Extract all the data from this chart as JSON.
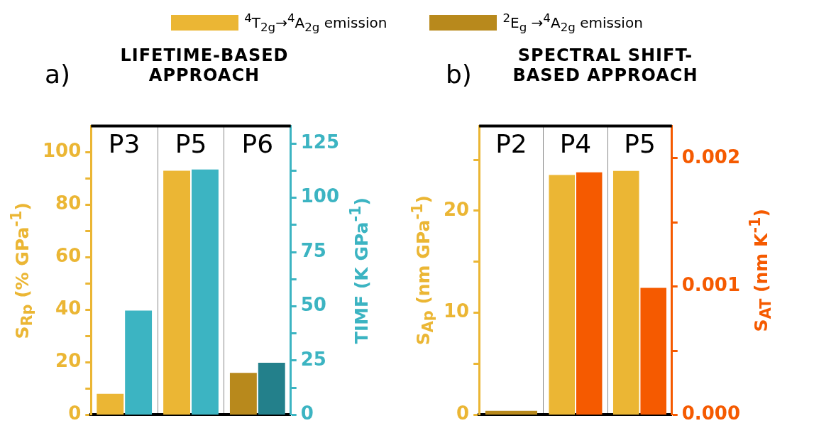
{
  "chart_data": [
    {
      "type": "bar",
      "title": "LIFETIME-BASED APPROACH",
      "annotations": [
        "a)"
      ],
      "ylabel": "S$_{Rp}$ (% GPa$^{-1}$)",
      "y2label": "TIMF (K GPa$^{-1}$)",
      "categories": [
        "P3",
        "P5",
        "P6"
      ],
      "series": [
        {
          "name": "$^{4}$T$_{2g}$→$^{4}$A$_{2g}$ emission",
          "color": "#ebb634",
          "values": [
            8,
            93,
            null
          ]
        },
        {
          "name": "$^{2}$E$_{g}$ →$^{4}$A$_{2g}$ emission",
          "color": "#b8891c",
          "values": [
            null,
            null,
            16
          ]
        },
        {
          "color": "#3cb4c2",
          "axis": "y2",
          "values": [
            48,
            113,
            null
          ]
        },
        {
          "color": "#23808b",
          "axis": "y2",
          "values": [
            null,
            null,
            24
          ]
        }
      ],
      "ylim": [
        0,
        110
      ],
      "yticks": [
        0,
        {
          "value": 10,
          "label": null
        },
        20,
        {
          "value": 30,
          "label": null
        },
        40,
        {
          "value": 50,
          "label": null
        },
        60,
        {
          "value": 70,
          "label": null
        },
        80,
        {
          "value": 90,
          "label": null
        },
        100
      ],
      "y2lim": [
        0,
        133
      ],
      "y2ticks": [
        0,
        {
          "value": 12.5,
          "label": null
        },
        25,
        {
          "value": 37.5,
          "label": null
        },
        50,
        {
          "value": 62.5,
          "label": null
        },
        75,
        {
          "value": 87.5,
          "label": null
        },
        100,
        {
          "value": 112.5,
          "label": null
        },
        125
      ],
      "grid": "x",
      "legend": "top"
    },
    {
      "type": "bar",
      "title": "SPECTRAL SHIFT-BASED APPROACH",
      "annotations": [
        "b)"
      ],
      "ylabel": "S$_{Ap}$ (nm GPa$^{-1}$)",
      "y2label": "S$_{AT}$ (nm K$^{-1}$)",
      "categories": [
        "P2",
        "P4",
        "P5"
      ],
      "series": [
        {
          "color": "#ebb634",
          "values": [
            null,
            23.5,
            23.9
          ]
        },
        {
          "color": "#b8891c",
          "values": [
            0.4,
            null,
            null
          ]
        },
        {
          "color": "#f55a00",
          "axis": "y2",
          "values": [
            null,
            0.00189,
            0.00099
          ]
        }
      ],
      "ylim": [
        0,
        28.3
      ],
      "yticks": [
        0,
        {
          "value": 5,
          "label": null
        },
        10,
        {
          "value": 15,
          "label": null
        },
        20,
        {
          "value": 25,
          "label": null
        }
      ],
      "y2lim": [
        0,
        0.00225
      ],
      "y2ticks": [
        {
          "value": 0,
          "label": "0.000"
        },
        {
          "value": 0.0005,
          "label": null
        },
        {
          "value": 0.001,
          "label": "0.001"
        },
        {
          "value": 0.0015,
          "label": null
        },
        {
          "value": 0.002,
          "label": "0.002"
        }
      ],
      "grid": "x"
    }
  ]
}
